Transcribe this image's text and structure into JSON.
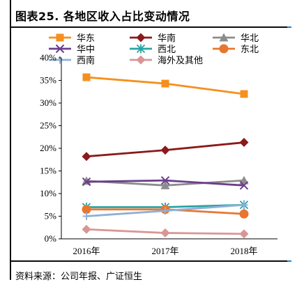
{
  "header": {
    "title": "图表25.  各地区收入占比变动情况"
  },
  "footer": {
    "source": "资料来源：公司年报、广证恒生"
  },
  "chart_data": {
    "type": "line",
    "title": "图表25.  各地区收入占比变动情况",
    "xlabel": "",
    "ylabel": "",
    "categories": [
      "2016年",
      "2017年",
      "2018年"
    ],
    "ylim": [
      0,
      40
    ],
    "yticks": [
      "0%",
      "5%",
      "10%",
      "15%",
      "20%",
      "25%",
      "30%",
      "35%",
      "40%"
    ],
    "grid": false,
    "legend_position": "top",
    "series": [
      {
        "name": "华东",
        "values": [
          35.7,
          34.3,
          32.0
        ],
        "color": "#f5901e",
        "marker": "square"
      },
      {
        "name": "华南",
        "values": [
          18.2,
          19.6,
          21.3
        ],
        "color": "#8b1a1a",
        "marker": "diamond"
      },
      {
        "name": "华北",
        "values": [
          12.8,
          11.8,
          12.9
        ],
        "color": "#8c8c8c",
        "marker": "triangle"
      },
      {
        "name": "华中",
        "values": [
          12.6,
          12.9,
          11.8
        ],
        "color": "#6b3f8c",
        "marker": "x"
      },
      {
        "name": "西北",
        "values": [
          7.0,
          7.0,
          7.5
        ],
        "color": "#2aa3a3",
        "marker": "star"
      },
      {
        "name": "东北",
        "values": [
          6.5,
          6.5,
          5.5
        ],
        "color": "#e8762e",
        "marker": "circle"
      },
      {
        "name": "西南",
        "values": [
          5.0,
          6.2,
          7.5
        ],
        "color": "#8fb0d8",
        "marker": "plus"
      },
      {
        "name": "海外及其他",
        "values": [
          2.1,
          1.3,
          1.1
        ],
        "color": "#d99694",
        "marker": "diamond"
      }
    ]
  }
}
